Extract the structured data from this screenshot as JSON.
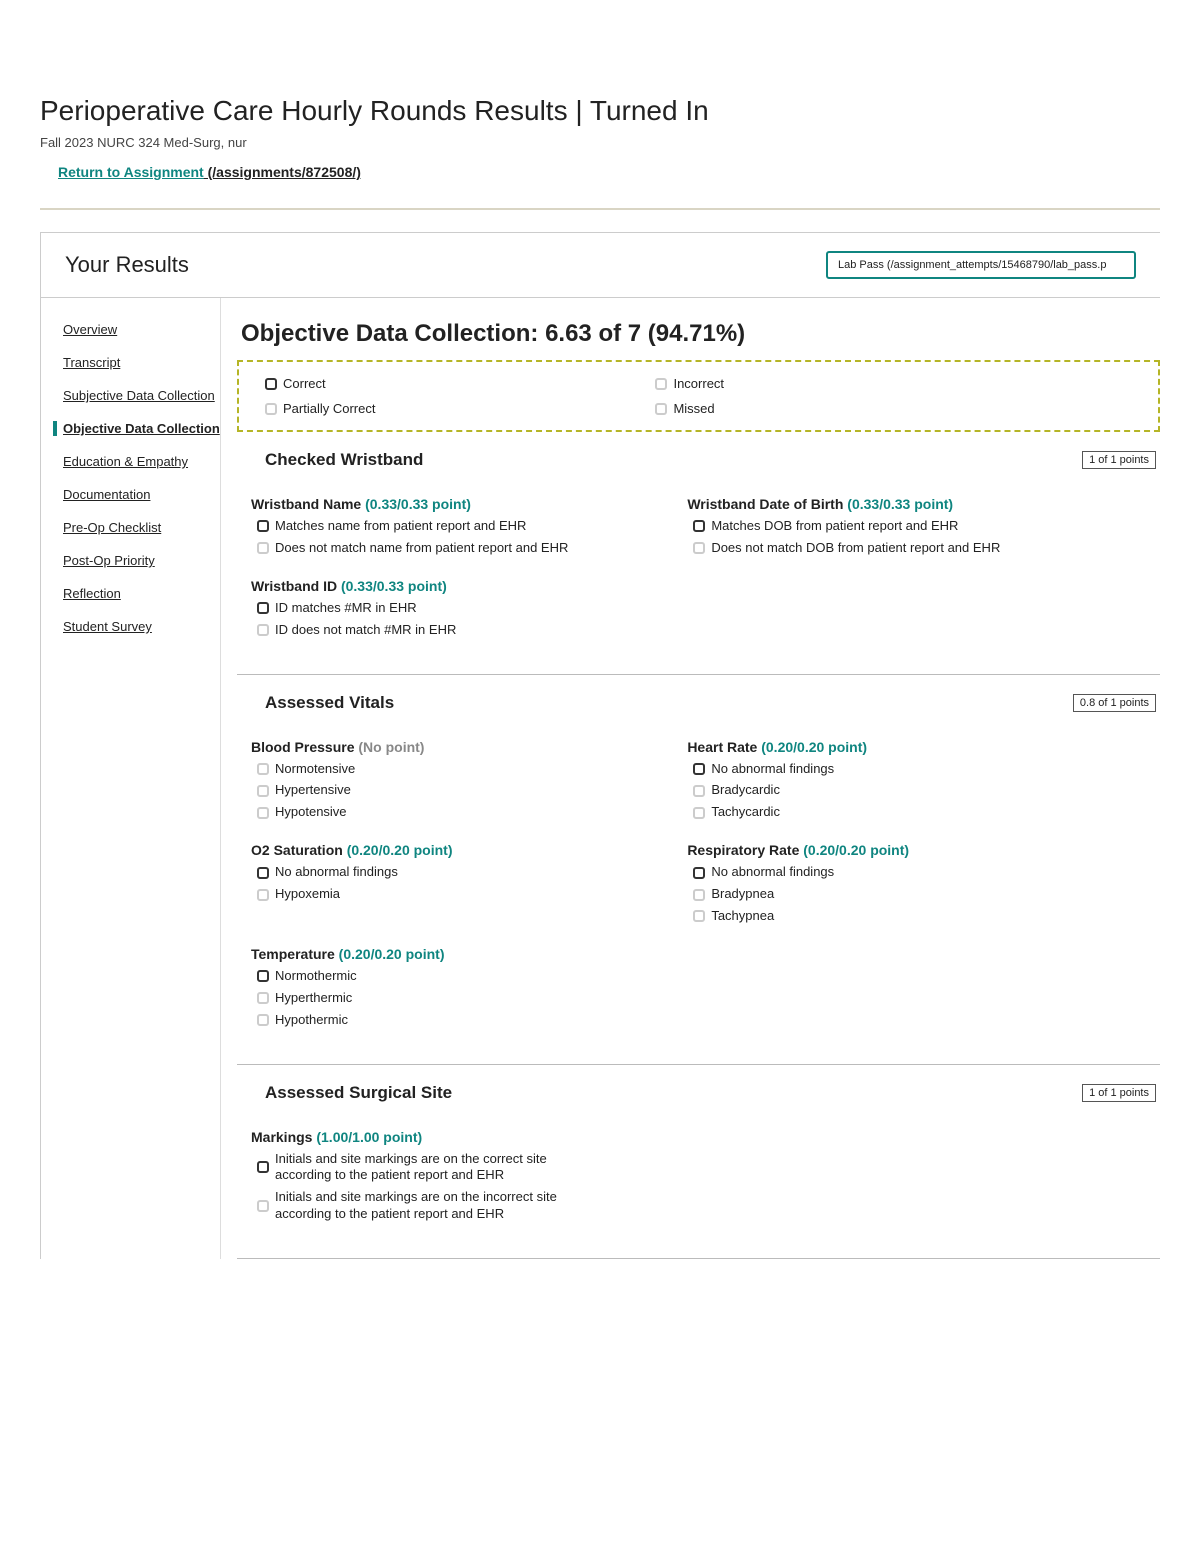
{
  "page_title": "Perioperative Care Hourly Rounds Results | Turned In",
  "subtitle": "Fall 2023 NURC 324 Med-Surg, nur",
  "return_link_text": "Return to Assignment",
  "return_link_path": " (/assignments/872508/)",
  "your_results": "Your Results",
  "lab_pass_text": "Lab Pass (/assignment_attempts/15468790/lab_pass.p",
  "sidebar": [
    {
      "label": "Overview",
      "active": false
    },
    {
      "label": "Transcript",
      "active": false
    },
    {
      "label": "Subjective Data Collection",
      "active": false
    },
    {
      "label": "Objective Data Collection",
      "active": true
    },
    {
      "label": "Education & Empathy",
      "active": false
    },
    {
      "label": "Documentation",
      "active": false
    },
    {
      "label": "Pre-Op Checklist",
      "active": false
    },
    {
      "label": "Post-Op Priority",
      "active": false
    },
    {
      "label": "Reflection",
      "active": false
    },
    {
      "label": "Student Survey",
      "active": false
    }
  ],
  "main_title": "Objective Data Collection: 6.63 of 7 (94.71%)",
  "legend": {
    "correct": "Correct",
    "partial": "Partially Correct",
    "incorrect": "Incorrect",
    "missed": "Missed"
  },
  "sections": [
    {
      "title": "Checked Wristband",
      "points": "1 of 1 points",
      "criteria": [
        {
          "title": "Wristband Name",
          "score": "(0.33/0.33 point)",
          "score_class": "criterion-score",
          "options": [
            {
              "text": "Matches name from patient report and EHR",
              "state": "selected-correct"
            },
            {
              "text": "Does not match name from patient report and EHR",
              "state": "not-selected"
            }
          ]
        },
        {
          "title": "Wristband Date of Birth",
          "score": "(0.33/0.33 point)",
          "score_class": "criterion-score",
          "options": [
            {
              "text": "Matches DOB from patient report and EHR",
              "state": "selected-correct"
            },
            {
              "text": "Does not match DOB from patient report and EHR",
              "state": "not-selected"
            }
          ]
        },
        {
          "title": "Wristband ID",
          "score": "(0.33/0.33 point)",
          "score_class": "criterion-score",
          "options": [
            {
              "text": "ID matches #MR in EHR",
              "state": "selected-correct"
            },
            {
              "text": "ID does not match #MR in EHR",
              "state": "not-selected"
            }
          ]
        }
      ]
    },
    {
      "title": "Assessed Vitals",
      "points": "0.8 of 1 points",
      "criteria": [
        {
          "title": "Blood Pressure",
          "score": "(No point)",
          "score_class": "criterion-score nopoint",
          "options": [
            {
              "text": "Normotensive",
              "state": "not-selected"
            },
            {
              "text": "Hypertensive",
              "state": "not-selected"
            },
            {
              "text": "Hypotensive",
              "state": "not-selected"
            }
          ]
        },
        {
          "title": "Heart Rate",
          "score": "(0.20/0.20 point)",
          "score_class": "criterion-score",
          "options": [
            {
              "text": "No abnormal findings",
              "state": "selected-correct"
            },
            {
              "text": "Bradycardic",
              "state": "not-selected"
            },
            {
              "text": "Tachycardic",
              "state": "not-selected"
            }
          ]
        },
        {
          "title": "O2 Saturation",
          "score": "(0.20/0.20 point)",
          "score_class": "criterion-score",
          "options": [
            {
              "text": "No abnormal findings",
              "state": "selected-correct"
            },
            {
              "text": "Hypoxemia",
              "state": "not-selected"
            }
          ]
        },
        {
          "title": "Respiratory Rate",
          "score": "(0.20/0.20 point)",
          "score_class": "criterion-score",
          "options": [
            {
              "text": "No abnormal findings",
              "state": "selected-correct"
            },
            {
              "text": "Bradypnea",
              "state": "not-selected"
            },
            {
              "text": "Tachypnea",
              "state": "not-selected"
            }
          ]
        },
        {
          "title": "Temperature",
          "score": "(0.20/0.20 point)",
          "score_class": "criterion-score",
          "options": [
            {
              "text": "Normothermic",
              "state": "selected-correct"
            },
            {
              "text": "Hyperthermic",
              "state": "not-selected"
            },
            {
              "text": "Hypothermic",
              "state": "not-selected"
            }
          ]
        }
      ]
    },
    {
      "title": "Assessed Surgical Site",
      "points": "1 of 1 points",
      "criteria": [
        {
          "title": "Markings",
          "score": "(1.00/1.00 point)",
          "score_class": "criterion-score",
          "options": [
            {
              "text": "Initials and site markings are on the correct site according to the patient report and EHR",
              "state": "selected-correct"
            },
            {
              "text": "Initials and site markings are on the incorrect site according to the patient report and EHR",
              "state": "not-selected"
            }
          ]
        }
      ]
    }
  ]
}
